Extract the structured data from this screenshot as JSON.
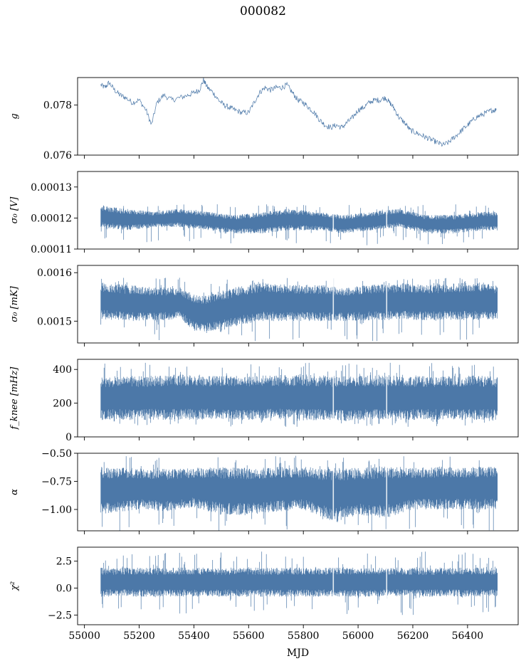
{
  "figure": {
    "title": "000082",
    "xlabel": "MJD",
    "line_color": "#4c78a8"
  },
  "chart_data": [
    {
      "type": "line",
      "ylabel": "g",
      "ylim": [
        0.076,
        0.0791
      ],
      "yticks": [
        0.076,
        0.078
      ],
      "ytick_labels": [
        "0.076",
        "0.078"
      ],
      "xlim": [
        54975,
        56585
      ],
      "series": [
        {
          "x": [
            55060,
            55075,
            55090,
            55110,
            55130,
            55150,
            55175,
            55200,
            55225,
            55245,
            55265,
            55290,
            55320,
            55350,
            55380,
            55400,
            55420,
            55435,
            55450,
            55470,
            55490,
            55510,
            55530,
            55550,
            55575,
            55600,
            55620,
            55640,
            55660,
            55680,
            55700,
            55720,
            55740,
            55760,
            55780,
            55800,
            55820,
            55840,
            55860,
            55880,
            55900,
            55920,
            55940,
            55960,
            55980,
            56000,
            56020,
            56040,
            56060,
            56080,
            56100,
            56115,
            56130,
            56150,
            56170,
            56190,
            56210,
            56230,
            56250,
            56270,
            56290,
            56310,
            56330,
            56350,
            56370,
            56390,
            56410,
            56430,
            56450,
            56470,
            56490,
            56505
          ],
          "y": [
            0.0788,
            0.0787,
            0.0789,
            0.0786,
            0.0784,
            0.0783,
            0.0781,
            0.0782,
            0.0778,
            0.0772,
            0.0781,
            0.0784,
            0.0782,
            0.0783,
            0.0784,
            0.0785,
            0.0786,
            0.079,
            0.0787,
            0.0785,
            0.0782,
            0.078,
            0.0779,
            0.0778,
            0.0777,
            0.0777,
            0.0781,
            0.0785,
            0.0787,
            0.0786,
            0.0787,
            0.0787,
            0.0788,
            0.0785,
            0.0782,
            0.0781,
            0.0779,
            0.0777,
            0.0774,
            0.0772,
            0.0771,
            0.0772,
            0.0771,
            0.0773,
            0.0775,
            0.0778,
            0.0779,
            0.0781,
            0.0782,
            0.0782,
            0.0783,
            0.0781,
            0.0779,
            0.0775,
            0.0773,
            0.077,
            0.0769,
            0.0768,
            0.0767,
            0.0766,
            0.0765,
            0.0764,
            0.0765,
            0.0767,
            0.0769,
            0.0771,
            0.0773,
            0.0775,
            0.0776,
            0.0777,
            0.0778,
            0.0778
          ]
        }
      ]
    },
    {
      "type": "line",
      "ylabel": "σ₀ [V]",
      "ylim": [
        0.00011,
        0.000135
      ],
      "yticks": [
        0.00011,
        0.00012,
        0.00013
      ],
      "ytick_labels": [
        "0.00011",
        "0.00012",
        "0.00013"
      ],
      "xlim": [
        54975,
        56585
      ],
      "band": {
        "x": [
          55060,
          55150,
          55250,
          55350,
          55450,
          55550,
          55650,
          55750,
          55850,
          55950,
          56050,
          56150,
          56250,
          56350,
          56450,
          56510
        ],
        "low": [
          0.000117,
          0.000116,
          0.000117,
          0.000117,
          0.000116,
          0.000115,
          0.000115,
          0.000116,
          0.000116,
          0.000115,
          0.000116,
          0.000117,
          0.000115,
          0.000115,
          0.000116,
          0.000116
        ],
        "high": [
          0.000124,
          0.000123,
          0.000122,
          0.000123,
          0.000122,
          0.000121,
          0.000122,
          0.000123,
          0.000122,
          0.000121,
          0.000122,
          0.000123,
          0.000121,
          0.000121,
          0.000122,
          0.000122
        ],
        "min": 0.000111,
        "max": 0.0001245
      }
    },
    {
      "type": "line",
      "ylabel": "σ₀ [mK]",
      "ylim": [
        0.001455,
        0.001615
      ],
      "yticks": [
        0.0015,
        0.0016
      ],
      "ytick_labels": [
        "0.0015",
        "0.0016"
      ],
      "xlim": [
        54975,
        56585
      ],
      "band": {
        "x": [
          55060,
          55150,
          55250,
          55350,
          55400,
          55450,
          55550,
          55650,
          55750,
          55850,
          55950,
          56050,
          56150,
          56250,
          56350,
          56450,
          56510
        ],
        "low": [
          0.001505,
          0.0015,
          0.0015,
          0.001505,
          0.00148,
          0.001478,
          0.00149,
          0.0015,
          0.0015,
          0.0015,
          0.0015,
          0.001502,
          0.001502,
          0.001502,
          0.001502,
          0.001502,
          0.001502
        ],
        "high": [
          0.00158,
          0.001575,
          0.00157,
          0.00157,
          0.001555,
          0.001555,
          0.00157,
          0.00158,
          0.001575,
          0.001575,
          0.00157,
          0.001575,
          0.001578,
          0.001575,
          0.001578,
          0.00158,
          0.001575
        ],
        "min": 0.001458,
        "max": 0.00159
      }
    },
    {
      "type": "line",
      "ylabel": "f_knee [mHz]",
      "ylim": [
        0,
        460
      ],
      "yticks": [
        0,
        200,
        400
      ],
      "ytick_labels": [
        "0",
        "200",
        "400"
      ],
      "xlim": [
        54975,
        56585
      ],
      "band": {
        "x": [
          55060,
          55200,
          55350,
          55500,
          55650,
          55800,
          55950,
          56100,
          56250,
          56400,
          56510
        ],
        "low": [
          100,
          100,
          100,
          105,
          100,
          100,
          95,
          100,
          100,
          100,
          100
        ],
        "high": [
          360,
          360,
          370,
          360,
          365,
          370,
          360,
          365,
          360,
          365,
          360
        ],
        "min": 60,
        "max": 440
      }
    },
    {
      "type": "line",
      "ylabel": "α",
      "ylim": [
        -1.19,
        -0.5
      ],
      "yticks": [
        -0.5,
        -0.75,
        -1.0
      ],
      "ytick_labels": [
        "−0.50",
        "−0.75",
        "−1.00"
      ],
      "xlim": [
        54975,
        56585
      ],
      "band": {
        "x": [
          55060,
          55200,
          55300,
          55400,
          55500,
          55600,
          55700,
          55800,
          55900,
          56000,
          56100,
          56200,
          56300,
          56400,
          56510
        ],
        "low": [
          -1.05,
          -1.0,
          -1.02,
          -0.98,
          -1.05,
          -1.05,
          -1.02,
          -1.0,
          -1.1,
          -1.05,
          -1.08,
          -1.0,
          -1.0,
          -1.0,
          -1.0
        ],
        "high": [
          -0.62,
          -0.63,
          -0.64,
          -0.63,
          -0.62,
          -0.63,
          -0.62,
          -0.62,
          -0.63,
          -0.63,
          -0.61,
          -0.63,
          -0.62,
          -0.62,
          -0.62
        ],
        "min": -1.19,
        "max": -0.52
      }
    },
    {
      "type": "line",
      "ylabel": "χ²",
      "ylim": [
        -3.4,
        3.8
      ],
      "yticks": [
        2.5,
        0.0,
        -2.5
      ],
      "ytick_labels": [
        "2.5",
        "0.0",
        "−2.5"
      ],
      "xlim": [
        54975,
        56585
      ],
      "xticks": [
        55000,
        55200,
        55400,
        55600,
        55800,
        56000,
        56200,
        56400
      ],
      "xtick_labels": [
        "55000",
        "55200",
        "55400",
        "55600",
        "55800",
        "56000",
        "56200",
        "56400"
      ],
      "band": {
        "x": [
          55060,
          55200,
          55350,
          55500,
          55650,
          55800,
          55950,
          56100,
          56250,
          56400,
          56510
        ],
        "low": [
          -0.8,
          -0.8,
          -0.8,
          -0.8,
          -0.8,
          -0.8,
          -0.8,
          -0.8,
          -0.8,
          -0.8,
          -0.8
        ],
        "high": [
          1.9,
          1.9,
          1.9,
          1.9,
          1.9,
          1.9,
          1.9,
          1.9,
          1.9,
          1.9,
          1.9
        ],
        "min": -2.5,
        "max": 3.4
      }
    }
  ]
}
